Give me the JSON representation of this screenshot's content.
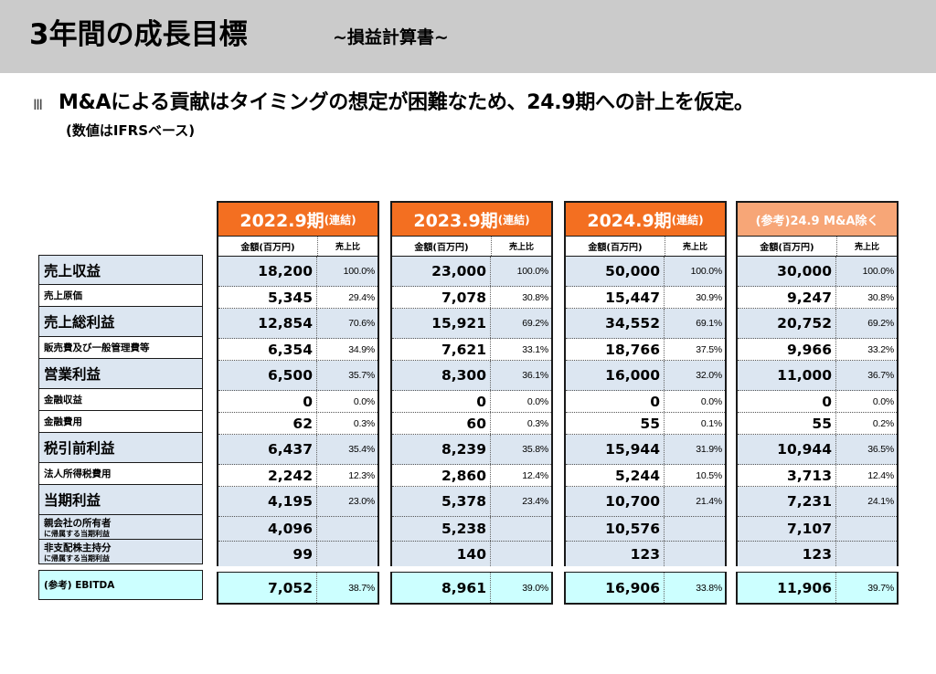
{
  "header": {
    "title": "3年間の成長目標",
    "subtitle": "~損益計算書~"
  },
  "headline": {
    "marker": "Ⅲ",
    "text": "M&Aによる貢献はタイミングの想定が困難なため、24.9期への計上を仮定。",
    "note": "(数値はIFRSベース)"
  },
  "table": {
    "subheaders": {
      "amount": "金額(百万円)",
      "ratio": "売上比"
    },
    "columns": [
      {
        "period": "2022.9期",
        "consolidated": "(連結)",
        "color": "#f36f21",
        "amounts": [
          "18,200",
          "5,345",
          "12,854",
          "6,354",
          "6,500",
          "0",
          "62",
          "6,437",
          "2,242",
          "4,195",
          "4,096",
          "99",
          "7,052"
        ],
        "ratios": [
          "100.0%",
          "29.4%",
          "70.6%",
          "34.9%",
          "35.7%",
          "0.0%",
          "0.3%",
          "35.4%",
          "12.3%",
          "23.0%",
          "",
          "",
          "38.7%"
        ]
      },
      {
        "period": "2023.9期",
        "consolidated": "(連結)",
        "color": "#f36f21",
        "amounts": [
          "23,000",
          "7,078",
          "15,921",
          "7,621",
          "8,300",
          "0",
          "60",
          "8,239",
          "2,860",
          "5,378",
          "5,238",
          "140",
          "8,961"
        ],
        "ratios": [
          "100.0%",
          "30.8%",
          "69.2%",
          "33.1%",
          "36.1%",
          "0.0%",
          "0.3%",
          "35.8%",
          "12.4%",
          "23.4%",
          "",
          "",
          "39.0%"
        ]
      },
      {
        "period": "2024.9期",
        "consolidated": "(連結)",
        "color": "#f36f21",
        "amounts": [
          "50,000",
          "15,447",
          "34,552",
          "18,766",
          "16,000",
          "0",
          "55",
          "15,944",
          "5,244",
          "10,700",
          "10,576",
          "123",
          "16,906"
        ],
        "ratios": [
          "100.0%",
          "30.9%",
          "69.1%",
          "37.5%",
          "32.0%",
          "0.0%",
          "0.1%",
          "31.9%",
          "10.5%",
          "21.4%",
          "",
          "",
          "33.8%"
        ]
      },
      {
        "period": "(参考)24.9 M&A除く",
        "consolidated": "",
        "color": "#f7a677",
        "amounts": [
          "30,000",
          "9,247",
          "20,752",
          "9,966",
          "11,000",
          "0",
          "55",
          "10,944",
          "3,713",
          "7,231",
          "7,107",
          "123",
          "11,906"
        ],
        "ratios": [
          "100.0%",
          "30.8%",
          "69.2%",
          "33.2%",
          "36.7%",
          "0.0%",
          "0.2%",
          "36.5%",
          "12.4%",
          "24.1%",
          "",
          "",
          "39.7%"
        ]
      }
    ],
    "rows": [
      {
        "label": "売上収益",
        "sub": ""
      },
      {
        "label": "売上原価",
        "sub": ""
      },
      {
        "label": "売上総利益",
        "sub": ""
      },
      {
        "label": "販売費及び一般管理費等",
        "sub": ""
      },
      {
        "label": "営業利益",
        "sub": ""
      },
      {
        "label": "金融収益",
        "sub": ""
      },
      {
        "label": "金融費用",
        "sub": ""
      },
      {
        "label": "税引前利益",
        "sub": ""
      },
      {
        "label": "法人所得税費用",
        "sub": ""
      },
      {
        "label": "当期利益",
        "sub": ""
      },
      {
        "label": "親会社の所有者",
        "sub": "に帰属する当期利益"
      },
      {
        "label": "非支配株主持分",
        "sub": "に帰属する当期利益"
      },
      {
        "label": "(参考) EBITDA",
        "sub": ""
      }
    ]
  }
}
